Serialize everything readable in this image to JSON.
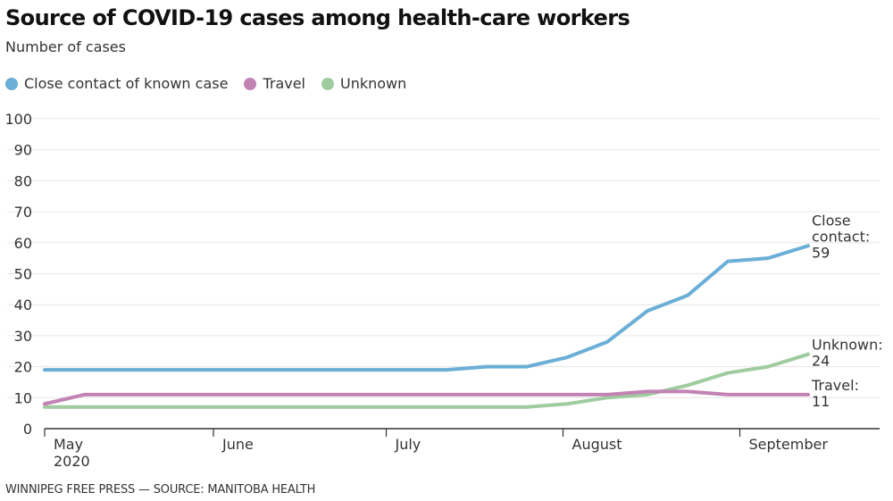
{
  "chart_data": {
    "type": "line",
    "title": "Source of COVID-19 cases among health-care workers",
    "subtitle": "Number of cases",
    "xlabel": "",
    "ylabel": "Number of cases",
    "ylim": [
      0,
      100
    ],
    "yticks": [
      "0",
      "10",
      "20",
      "30",
      "40",
      "50",
      "60",
      "70",
      "80",
      "90",
      "100"
    ],
    "ytick_values": [
      0,
      10,
      20,
      30,
      40,
      50,
      60,
      70,
      80,
      90,
      100
    ],
    "grid": true,
    "legend_position": "top-left",
    "x_ticks": [
      {
        "label": "May",
        "label2": "2020",
        "pos": 0
      },
      {
        "label": "June",
        "label2": "",
        "pos": 4.2
      },
      {
        "label": "July",
        "label2": "",
        "pos": 8.5
      },
      {
        "label": "August",
        "label2": "",
        "pos": 12.9
      },
      {
        "label": "September",
        "label2": "",
        "pos": 17.3
      }
    ],
    "x_range": [
      0,
      20.5
    ],
    "x": [
      0,
      1,
      2,
      3,
      4,
      5,
      6,
      7,
      8,
      9,
      10,
      11,
      12,
      13,
      14,
      15,
      16,
      17,
      18,
      19
    ],
    "series": [
      {
        "name": "Close contact of known case",
        "color": "#6baed6",
        "values": [
          19,
          19,
          19,
          19,
          19,
          19,
          19,
          19,
          19,
          19,
          19,
          20,
          20,
          23,
          28,
          38,
          43,
          54,
          55,
          59
        ],
        "end_label": [
          "Close",
          "contact:",
          "59"
        ]
      },
      {
        "name": "Travel",
        "color": "#c283b4",
        "values": [
          8,
          11,
          11,
          11,
          11,
          11,
          11,
          11,
          11,
          11,
          11,
          11,
          11,
          11,
          11,
          12,
          12,
          11,
          11,
          11
        ],
        "end_label": [
          "Travel:",
          "11"
        ]
      },
      {
        "name": "Unknown",
        "color": "#9fcc9f",
        "values": [
          7,
          7,
          7,
          7,
          7,
          7,
          7,
          7,
          7,
          7,
          7,
          7,
          7,
          8,
          10,
          11,
          14,
          18,
          20,
          24
        ],
        "end_label": [
          "Unknown:",
          "24"
        ]
      }
    ]
  },
  "legend": [
    {
      "label": "Close contact of known case",
      "color": "#6baed6"
    },
    {
      "label": "Travel",
      "color": "#c283b4"
    },
    {
      "label": "Unknown",
      "color": "#9fcc9f"
    }
  ],
  "footer": "WINNIPEG FREE PRESS — SOURCE: MANITOBA HEALTH"
}
